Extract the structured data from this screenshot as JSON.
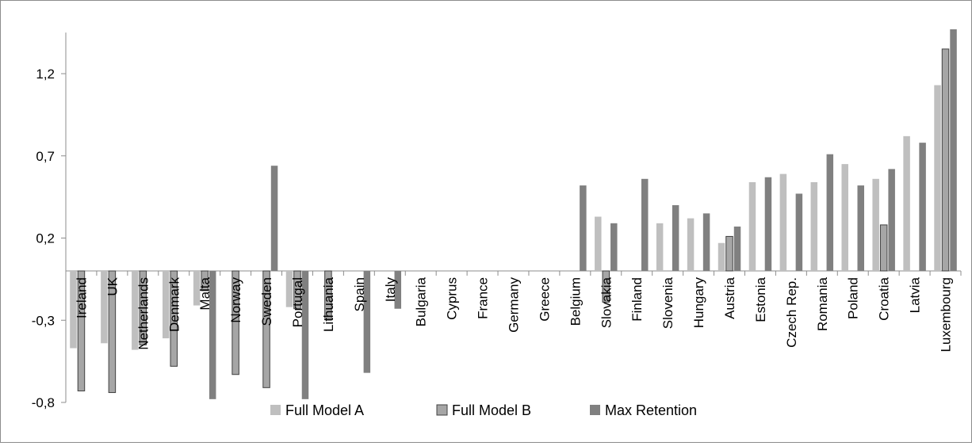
{
  "chart_data": {
    "type": "bar",
    "title": "",
    "xlabel": "",
    "ylabel": "",
    "ylim": [
      -0.8,
      1.45
    ],
    "yticks": [
      "-0,8",
      "-0,3",
      "0,2",
      "0,7",
      "1,2"
    ],
    "ytick_values": [
      -0.8,
      -0.3,
      0.2,
      0.7,
      1.2
    ],
    "grid": false,
    "legend_position": "bottom",
    "categories": [
      "Ireland",
      "UK",
      "Netherlands",
      "Denmark",
      "Malta",
      "Norway",
      "Sweden",
      "Portugal",
      "Lithuania",
      "Spain",
      "Italy",
      "Bulgaria",
      "Cyprus",
      "France",
      "Germany",
      "Greece",
      "Belgium",
      "Slovakia",
      "Finland",
      "Slovenia",
      "Hungary",
      "Austria",
      "Estonia",
      "Czech Rep.",
      "Romania",
      "Poland",
      "Croatia",
      "Latvia",
      "Luxembourg"
    ],
    "series": [
      {
        "name": "Full Model A",
        "color": "#bfbfbf",
        "values": [
          -0.47,
          -0.44,
          -0.48,
          -0.41,
          -0.21,
          0,
          0,
          -0.22,
          0,
          0,
          0,
          0,
          0,
          0,
          0,
          0,
          0,
          0.33,
          0,
          0.29,
          0.32,
          0.17,
          0.54,
          0.59,
          0.54,
          0.65,
          0.56,
          0.82,
          1.13
        ]
      },
      {
        "name": "Full Model B",
        "color": "#a6a6a6",
        "values": [
          -0.73,
          -0.74,
          -0.45,
          -0.58,
          -0.12,
          -0.63,
          -0.71,
          -0.23,
          -0.29,
          0,
          0,
          0,
          0,
          0,
          0,
          0,
          0,
          -0.19,
          0,
          0,
          0,
          0.21,
          0,
          0,
          0,
          0,
          0.28,
          0,
          1.35
        ]
      },
      {
        "name": "Max Retention",
        "color": "#808080",
        "values": [
          0,
          0,
          0,
          0,
          -0.78,
          0,
          0.64,
          -0.78,
          0,
          -0.62,
          -0.23,
          0,
          0,
          0,
          0,
          0,
          0.52,
          0.29,
          0.56,
          0.4,
          0.35,
          0.27,
          0.57,
          0.47,
          0.71,
          0.52,
          0.62,
          0.78,
          1.47
        ]
      }
    ]
  }
}
